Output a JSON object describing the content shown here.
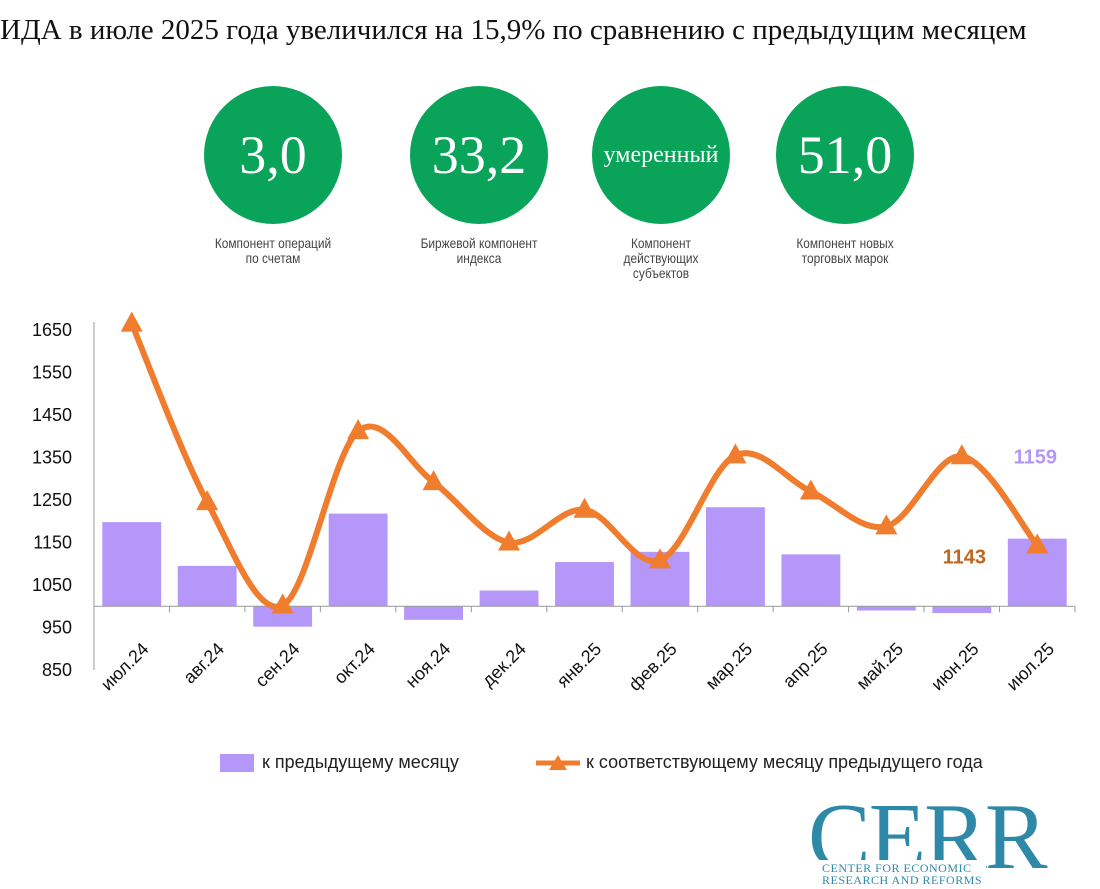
{
  "title": "ИДА в июле 2025 года увеличился на 15,9% по сравнению с предыдущим месяцем",
  "kpis": [
    {
      "value": "3,0",
      "label": "Компонент операций по счетам"
    },
    {
      "value": "33,2",
      "label": "Биржевой компонент индекса"
    },
    {
      "value": "умеренный",
      "label": "Компонент действующих субъектов"
    },
    {
      "value": "51,0",
      "label": "Компонент новых торговых марок"
    }
  ],
  "colors": {
    "kpi_circle": "#0aa35a",
    "bar": "#b596f9",
    "line": "#f07c2d",
    "bar_label": "#b596f9",
    "line_label": "#c0651e",
    "logo": "#2e89a8"
  },
  "chart_data": {
    "type": "bar",
    "categories": [
      "июл.24",
      "авг.24",
      "сен.24",
      "окт.24",
      "ноя.24",
      "дек.24",
      "янв.25",
      "фев.25",
      "мар.25",
      "апр.25",
      "май.25",
      "июн.25",
      "июл.25"
    ],
    "series": [
      {
        "name": "к предыдущему месяцу",
        "type": "bar",
        "values": [
          1198,
          1095,
          952,
          1218,
          968,
          1037,
          1104,
          1128,
          1233,
          1122,
          990,
          984,
          1159
        ]
      },
      {
        "name": "к соответствующему месяцу предыдущего года",
        "type": "line",
        "marker": "triangle",
        "values": [
          1665,
          1245,
          1002,
          1412,
          1292,
          1150,
          1227,
          1108,
          1355,
          1270,
          1188,
          1353,
          1143
        ]
      }
    ],
    "baseline": 1000,
    "ylim": [
      850,
      1700
    ],
    "yticks": [
      850,
      950,
      1050,
      1150,
      1250,
      1350,
      1450,
      1550,
      1650
    ],
    "data_labels": {
      "bar_last": "1159",
      "line_last": "1143"
    },
    "legend_position": "bottom",
    "grid": false
  },
  "logo": {
    "text": "CERR",
    "subtitle_line1": "CENTER FOR ECONOMIC",
    "subtitle_line2": "RESEARCH AND REFORMS"
  }
}
